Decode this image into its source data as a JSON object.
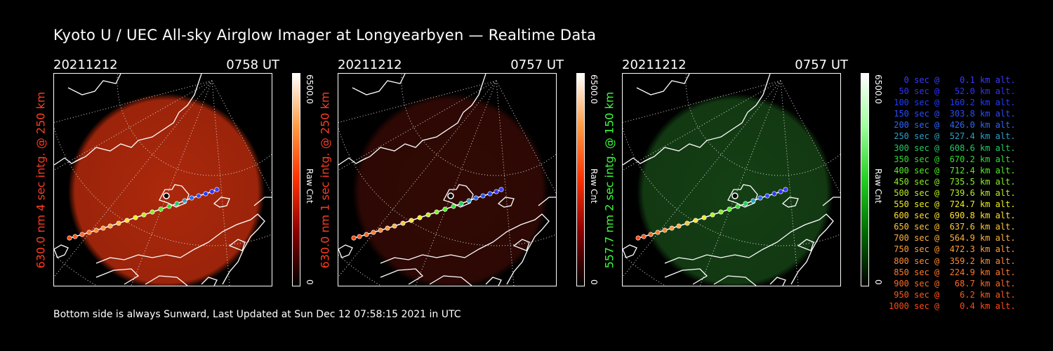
{
  "title": "Kyoto U / UEC All-sky Airglow Imager at Longyearbyen — Realtime Data",
  "footer": "Bottom side is always Sunward, Last Updated at Sun Dec 12 07:58:15 2021 in UTC",
  "panels": [
    {
      "date": "20211212",
      "time": "0758 UT",
      "side_label": "630.0 nm  4 sec intg. @ 250 km",
      "side_color": "#ff3b1f",
      "cbar_max": "6500.0",
      "cbar_min": "0",
      "cbar_unit": "Raw Cnt",
      "cbar_colors": [
        "#000000",
        "#8a0000",
        "#ff3000",
        "#ff9a40",
        "#ffffff"
      ],
      "image_color": "#b52a0c",
      "image_intensity": 0.95
    },
    {
      "date": "20211212",
      "time": "0757 UT",
      "side_label": "630.0 nm  1 sec intg. @ 250 km",
      "side_color": "#ff3b1f",
      "cbar_max": "6500.0",
      "cbar_min": "0",
      "cbar_unit": "Raw Cnt",
      "cbar_colors": [
        "#000000",
        "#8a0000",
        "#ff3000",
        "#ff9a40",
        "#ffffff"
      ],
      "image_color": "#5a1108",
      "image_intensity": 0.55
    },
    {
      "date": "20211212",
      "time": "0757 UT",
      "side_label": "557.7 nm  2 sec intg. @ 150 km",
      "side_color": "#39ff39",
      "cbar_max": "6500.0",
      "cbar_min": "0",
      "cbar_unit": "Raw Cnt",
      "cbar_colors": [
        "#000000",
        "#006b00",
        "#22d022",
        "#9cff9c",
        "#ffffff"
      ],
      "image_color": "#1d5a1d",
      "image_intensity": 0.7
    }
  ],
  "legend": [
    {
      "text": "   0 sec @    0.1 km alt.",
      "color": "#3b3bff"
    },
    {
      "text": "  50 sec @   52.0 km alt.",
      "color": "#3131ff"
    },
    {
      "text": " 100 sec @  160.2 km alt.",
      "color": "#1f3cff"
    },
    {
      "text": " 150 sec @  303.8 km alt.",
      "color": "#2a4bff"
    },
    {
      "text": " 200 sec @  426.0 km alt.",
      "color": "#2c66ff"
    },
    {
      "text": " 250 sec @  527.4 km alt.",
      "color": "#2aa0c8"
    },
    {
      "text": " 300 sec @  608.6 km alt.",
      "color": "#22cc66"
    },
    {
      "text": " 350 sec @  670.2 km alt.",
      "color": "#33dd33"
    },
    {
      "text": " 400 sec @  712.4 km alt.",
      "color": "#55ee22"
    },
    {
      "text": " 450 sec @  735.5 km alt.",
      "color": "#88f022"
    },
    {
      "text": " 500 sec @  739.6 km alt.",
      "color": "#bbee22"
    },
    {
      "text": " 550 sec @  724.7 km alt.",
      "color": "#eeee22"
    },
    {
      "text": " 600 sec @  690.8 km alt.",
      "color": "#ffe030"
    },
    {
      "text": " 650 sec @  637.6 km alt.",
      "color": "#ffc53a"
    },
    {
      "text": " 700 sec @  564.9 km alt.",
      "color": "#ffb040"
    },
    {
      "text": " 750 sec @  472.3 km alt.",
      "color": "#ff9d3a"
    },
    {
      "text": " 800 sec @  359.2 km alt.",
      "color": "#ff8a30"
    },
    {
      "text": " 850 sec @  224.9 km alt.",
      "color": "#ff7a2a"
    },
    {
      "text": " 900 sec @   68.7 km alt.",
      "color": "#ff6a22"
    },
    {
      "text": " 950 sec @    6.2 km alt.",
      "color": "#ff5a1a"
    },
    {
      "text": "1000 sec @    0.4 km alt.",
      "color": "#ff4a14"
    }
  ]
}
